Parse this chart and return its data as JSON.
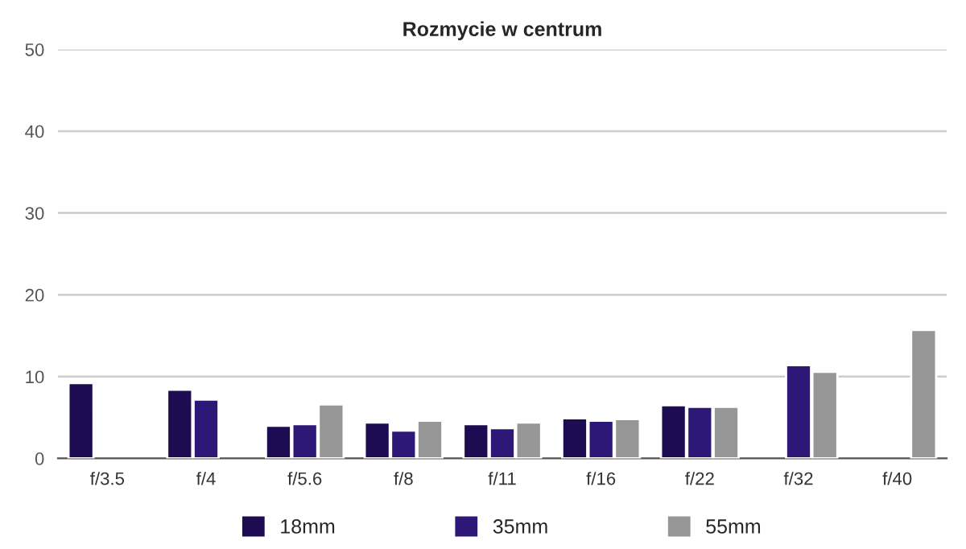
{
  "chart_data": {
    "type": "bar",
    "title": "Rozmycie w centrum",
    "categories": [
      "f/3.5",
      "f/4",
      "f/5.6",
      "f/8",
      "f/11",
      "f/16",
      "f/22",
      "f/32",
      "f/40"
    ],
    "series": [
      {
        "name": "18mm",
        "color": "#1e0c52",
        "values": [
          9.2,
          8.4,
          4.0,
          4.4,
          4.2,
          4.9,
          6.5,
          null,
          null
        ]
      },
      {
        "name": "35mm",
        "color": "#2e1877",
        "values": [
          null,
          7.2,
          4.2,
          3.4,
          3.7,
          4.6,
          6.3,
          11.4,
          null
        ]
      },
      {
        "name": "55mm",
        "color": "#969696",
        "values": [
          null,
          null,
          6.6,
          4.6,
          4.4,
          4.8,
          6.3,
          10.6,
          15.7
        ]
      }
    ],
    "ylim": [
      0,
      50
    ],
    "yticks": [
      0,
      10,
      20,
      30,
      40,
      50
    ],
    "grid": "y",
    "legend": "bottom"
  }
}
